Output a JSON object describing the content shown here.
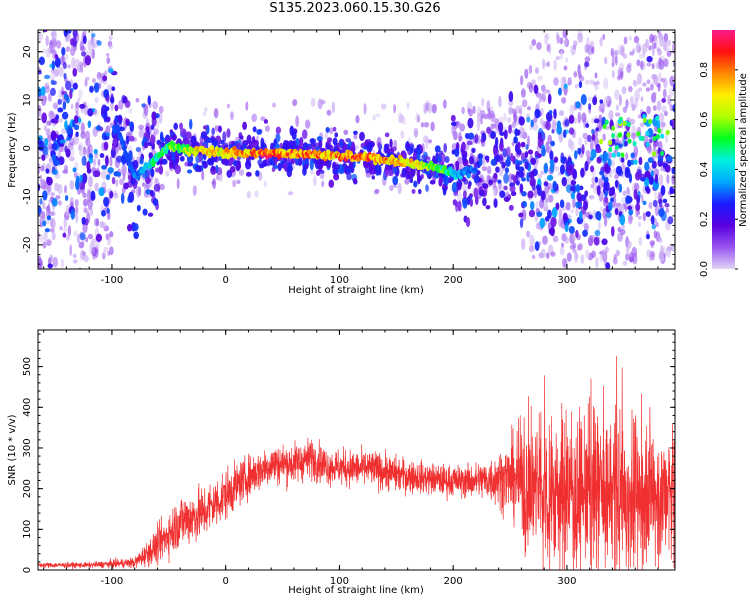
{
  "title": "S135.2023.060.15.30.G26",
  "chart_data": [
    {
      "type": "heatmap",
      "xlabel": "Height of straight line (km)",
      "ylabel": "Frequency (Hz)",
      "xlim": [
        -165,
        395
      ],
      "ylim": [
        -25,
        24.5
      ],
      "xticks": [
        -100,
        0,
        100,
        200,
        300
      ],
      "yticks": [
        -20,
        -10,
        0,
        10,
        20
      ],
      "colorbar": {
        "label": "Normalized spectral amplitude",
        "range": [
          0.0,
          0.96
        ],
        "ticks": [
          0.0,
          0.2,
          0.4,
          0.6,
          0.8
        ],
        "colormap": [
          "#e0d4f5",
          "#9a55f0",
          "#5a00e0",
          "#1a1aff",
          "#00a8ff",
          "#00f0e0",
          "#00ff20",
          "#b0ff00",
          "#ffee00",
          "#ff8800",
          "#ff1010",
          "#ff1a8a"
        ]
      },
      "ridge": {
        "x": [
          -95,
          -80,
          -65,
          -50,
          -35,
          -20,
          0,
          30,
          60,
          90,
          110,
          130,
          150,
          170,
          190,
          205,
          215
        ],
        "freq": [
          4,
          -6,
          -3,
          0.5,
          -0.3,
          -0.5,
          -1,
          -1,
          -1,
          -1.4,
          -1.8,
          -2,
          -2.7,
          -3.4,
          -4.3,
          -5.5,
          -4.5
        ],
        "amplitude": [
          0.3,
          0.35,
          0.5,
          0.6,
          0.7,
          0.8,
          0.8,
          0.95,
          0.9,
          0.85,
          0.92,
          0.9,
          0.85,
          0.75,
          0.6,
          0.45,
          0.35
        ]
      }
    },
    {
      "type": "line",
      "xlabel": "Height of straight line (km)",
      "ylabel": "SNR (10 * v/v)",
      "xlim": [
        -165,
        395
      ],
      "ylim": [
        0,
        590
      ],
      "xticks": [
        -100,
        0,
        100,
        200,
        300
      ],
      "yticks": [
        0,
        100,
        200,
        300,
        400,
        500
      ],
      "color": "#f03030",
      "envelope": {
        "x": [
          -165,
          -120,
          -80,
          -60,
          -40,
          -20,
          0,
          20,
          40,
          60,
          75,
          90,
          110,
          130,
          150,
          170,
          190,
          210,
          230,
          250,
          265,
          280,
          300,
          320,
          340,
          360,
          380,
          395
        ],
        "mean": [
          12,
          12,
          18,
          60,
          120,
          140,
          185,
          230,
          260,
          262,
          275,
          255,
          250,
          248,
          235,
          228,
          220,
          218,
          222,
          228,
          210,
          200,
          190,
          195,
          190,
          185,
          180,
          180
        ],
        "spread": [
          6,
          6,
          12,
          40,
          60,
          60,
          55,
          45,
          45,
          45,
          45,
          40,
          40,
          40,
          40,
          35,
          35,
          35,
          45,
          80,
          150,
          160,
          170,
          170,
          180,
          170,
          160,
          160
        ]
      }
    }
  ]
}
